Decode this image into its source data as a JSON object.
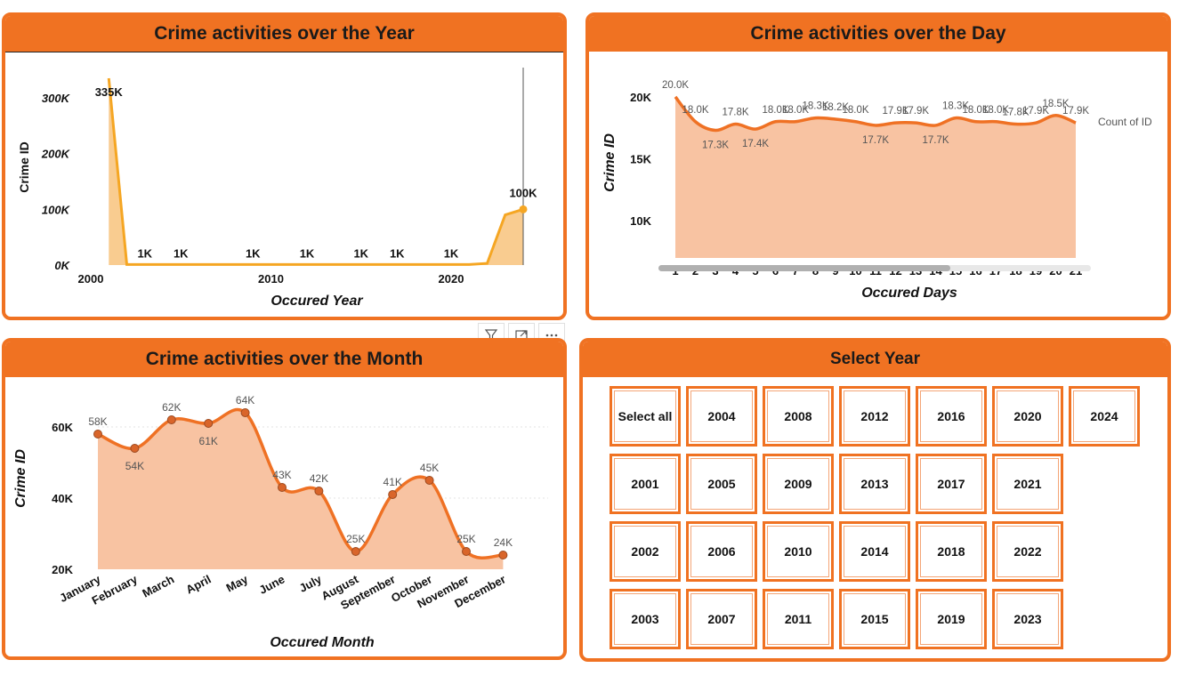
{
  "colors": {
    "accent": "#f07222",
    "line_year": "#f5a623",
    "area_year": "#f9cc90",
    "area_orange": "#f8c3a2",
    "line_orange": "#ef7124"
  },
  "chart_data": [
    {
      "id": "year",
      "type": "area",
      "title": "Crime activities over the Year",
      "xlabel": "Occured Year",
      "ylabel": "Crime ID",
      "x_ticks": [
        "2000",
        "2010",
        "2020"
      ],
      "y_ticks": [
        "0K",
        "100K",
        "200K",
        "300K"
      ],
      "xlim": [
        2000,
        2024
      ],
      "ylim": [
        0,
        335000
      ],
      "x": [
        2001,
        2002,
        2003,
        2004,
        2005,
        2006,
        2007,
        2008,
        2009,
        2010,
        2011,
        2012,
        2013,
        2014,
        2015,
        2016,
        2017,
        2018,
        2019,
        2020,
        2021,
        2022,
        2023,
        2024
      ],
      "values": [
        335000,
        1000,
        1000,
        1000,
        1000,
        1000,
        1000,
        1000,
        1000,
        1000,
        1000,
        1000,
        1000,
        1000,
        1000,
        1000,
        1000,
        1000,
        1000,
        1000,
        1000,
        3000,
        90000,
        100000
      ],
      "data_labels": [
        {
          "x": 2001,
          "text": "335K"
        },
        {
          "x": 2003,
          "text": "1K"
        },
        {
          "x": 2005,
          "text": "1K"
        },
        {
          "x": 2009,
          "text": "1K"
        },
        {
          "x": 2012,
          "text": "1K"
        },
        {
          "x": 2015,
          "text": "1K"
        },
        {
          "x": 2017,
          "text": "1K"
        },
        {
          "x": 2020,
          "text": "1K"
        },
        {
          "x": 2024,
          "text": "100K"
        }
      ],
      "grid": false
    },
    {
      "id": "day",
      "type": "area",
      "title": "Crime activities over the Day",
      "xlabel": "Occured Days",
      "ylabel": "Crime ID",
      "categories": [
        "1",
        "2",
        "3",
        "4",
        "5",
        "6",
        "7",
        "8",
        "9",
        "10",
        "11",
        "12",
        "13",
        "14",
        "15",
        "16",
        "17",
        "18",
        "19",
        "20",
        "21"
      ],
      "values": [
        20000,
        18000,
        17300,
        17800,
        17400,
        18000,
        18000,
        18300,
        18200,
        18000,
        17700,
        17900,
        17900,
        17700,
        18300,
        18000,
        18000,
        17800,
        17900,
        18500,
        17900
      ],
      "value_labels": [
        "20.0K",
        "18.0K",
        "17.3K",
        "17.8K",
        "17.4K",
        "18.0K",
        "18.0K",
        "18.3K",
        "18.2K",
        "18.0K",
        "17.7K",
        "17.9K",
        "17.9K",
        "17.7K",
        "18.3K",
        "18.0K",
        "18.0K",
        "17.8K",
        "17.9K",
        "18.5K",
        "17.9K"
      ],
      "y_ticks": [
        "10K",
        "15K",
        "20K"
      ],
      "ylim": [
        7000,
        21500
      ],
      "series_label": "Count of ID",
      "grid": false
    },
    {
      "id": "month",
      "type": "area",
      "title": "Crime activities over the Month",
      "xlabel": "Occured Month",
      "ylabel": "Crime ID",
      "categories": [
        "January",
        "February",
        "March",
        "April",
        "May",
        "June",
        "July",
        "August",
        "September",
        "October",
        "November",
        "December"
      ],
      "values": [
        58000,
        54000,
        62000,
        61000,
        64000,
        43000,
        42000,
        25000,
        41000,
        45000,
        25000,
        24000
      ],
      "value_labels": [
        "58K",
        "54K",
        "62K",
        "61K",
        "64K",
        "43K",
        "42K",
        "25K",
        "41K",
        "45K",
        "25K",
        "24K"
      ],
      "y_ticks": [
        "20K",
        "40K",
        "60K"
      ],
      "ylim": [
        20000,
        70000
      ],
      "grid": true
    }
  ],
  "slicer": {
    "title": "Select Year",
    "columns": [
      [
        "Select all",
        "2001",
        "2002",
        "2003"
      ],
      [
        "2004",
        "2005",
        "2006",
        "2007"
      ],
      [
        "2008",
        "2009",
        "2010",
        "2011"
      ],
      [
        "2012",
        "2013",
        "2014",
        "2015"
      ],
      [
        "2016",
        "2017",
        "2018",
        "2019"
      ],
      [
        "2020",
        "2021",
        "2022",
        "2023"
      ],
      [
        "2024"
      ]
    ]
  },
  "toolbar": {
    "icons": [
      "filter-icon",
      "focus-mode-icon",
      "more-options-icon"
    ]
  }
}
